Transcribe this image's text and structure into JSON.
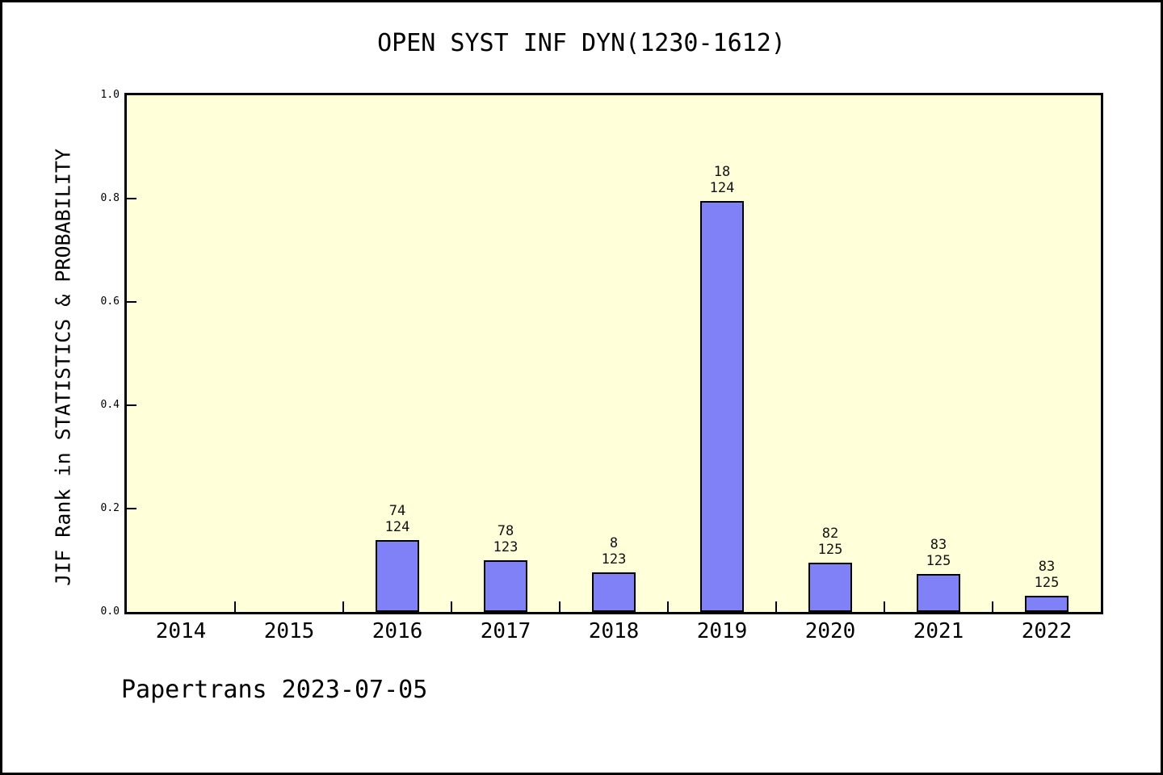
{
  "chart_data": {
    "type": "bar",
    "title": "OPEN SYST INF DYN(1230-1612)",
    "ylabel": "JIF Rank in STATISTICS & PROBABILITY",
    "xlabel": "",
    "categories": [
      "2014",
      "2015",
      "2016",
      "2017",
      "2018",
      "2019",
      "2020",
      "2021",
      "2022"
    ],
    "bars": [
      {
        "year": "2014",
        "rank": null,
        "total": null,
        "value": null
      },
      {
        "year": "2015",
        "rank": null,
        "total": null,
        "value": null
      },
      {
        "year": "2016",
        "rank": 74,
        "total": 124,
        "value": 0.139
      },
      {
        "year": "2017",
        "rank": 78,
        "total": 123,
        "value": 0.1
      },
      {
        "year": "2018",
        "rank": 8,
        "total": 123,
        "value": 0.077
      },
      {
        "year": "2019",
        "rank": 18,
        "total": 124,
        "value": 0.795
      },
      {
        "year": "2020",
        "rank": 82,
        "total": 125,
        "value": 0.096
      },
      {
        "year": "2021",
        "rank": 83,
        "total": 125,
        "value": 0.074
      },
      {
        "year": "2022",
        "rank": 83,
        "total": 125,
        "value": 0.032
      }
    ],
    "ylim": [
      0,
      1
    ],
    "yticks": [
      0.0,
      0.2,
      0.4,
      0.6,
      0.8,
      1.0
    ],
    "grid": false,
    "legend": "none",
    "colors": {
      "bar_fill": "#8080F7",
      "bar_border": "#000000",
      "plot_bg": "#FFFFD9",
      "page_bg": "#FFFFFF",
      "frame": "#000000",
      "text": "#000000"
    }
  },
  "footer": {
    "text": "Papertrans 2023-07-05"
  }
}
